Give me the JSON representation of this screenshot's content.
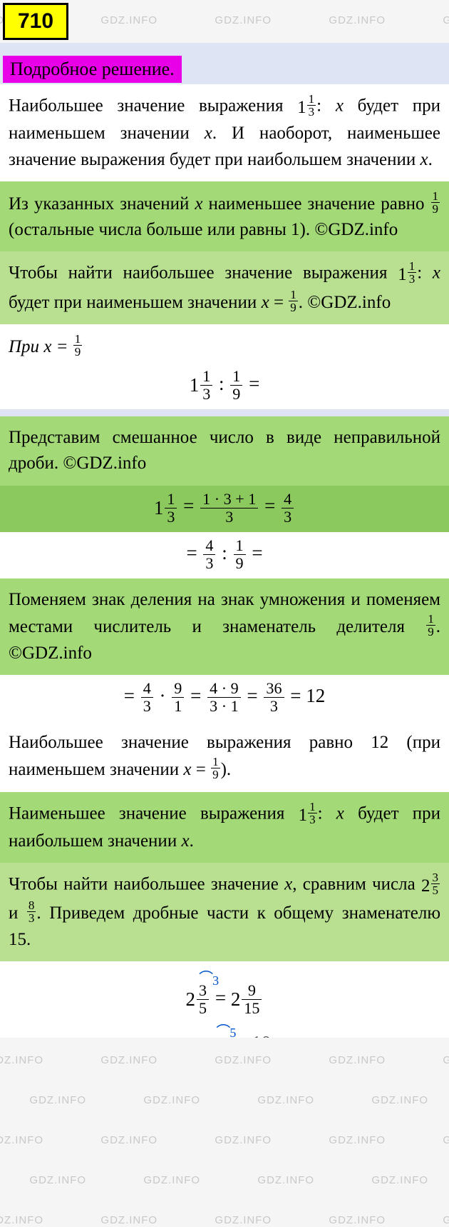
{
  "badge": "710",
  "section_title": "Подробное решение.",
  "watermark_text": "GDZ.INFO",
  "p1_a": "Наибольшее значение выражения ",
  "p1_b": " будет при наименьшем значении ",
  "p1_c": ". И наоборот, наименьшее значение выражения будет при наибольшем значении ",
  "p1_d": ".",
  "p2_a": "Из указанных значений ",
  "p2_b": " наименьшее значение равно ",
  "p2_c": " (остальные числа больше или равны 1). ©GDZ.info",
  "p3_a": "Чтобы найти наибольшее значение выражения ",
  "p3_b": " будет при наименьшем значении ",
  "p3_c": ". ©GDZ.info",
  "p4_a": "При ",
  "p5_a": "Представим смешанное число в виде неправильной дроби. ©GDZ.info",
  "p6_a": "Поменяем знак деления на знак умножения и поменяем местами числитель и знаменатель делителя ",
  "p6_b": ". ©GDZ.info",
  "p7_a": "Наибольшее значение выражения равно 12 (при наименьшем значении ",
  "p7_b": ").",
  "p8_a": "Наименьшее значение выражения ",
  "p8_b": " будет при наибольшем значении ",
  "p8_c": ".",
  "p9_a": "Чтобы найти наибольшее значение ",
  "p9_b": ", сравним числа ",
  "p9_c": " и ",
  "p9_d": ". Приведем дробные части к общему знаменателю 15.",
  "frac_1_3": {
    "n": "1",
    "d": "3"
  },
  "frac_1_9": {
    "n": "1",
    "d": "9"
  },
  "frac_4_3": {
    "n": "4",
    "d": "3"
  },
  "frac_9_1": {
    "n": "9",
    "d": "1"
  },
  "frac_36_3": {
    "n": "36",
    "d": "3"
  },
  "frac_3_5": {
    "n": "3",
    "d": "5"
  },
  "frac_8_3": {
    "n": "8",
    "d": "3"
  },
  "frac_9_15": {
    "n": "9",
    "d": "15"
  },
  "expr_131": {
    "n": "1 · 3 + 1",
    "d": "3"
  },
  "expr_49": {
    "n": "4 · 9",
    "d": "3 · 1"
  },
  "result_12": "= 12",
  "colors": {
    "badge_bg": "#ffff00",
    "title_bg": "#e800e8",
    "green_a": "#a3d977",
    "green_b": "#b8e090",
    "green_c": "#8bc95f",
    "blue": "#dfe4f4",
    "white": "#ffffff",
    "watermark": "#c8c8c8",
    "arc": "#0055cc"
  }
}
